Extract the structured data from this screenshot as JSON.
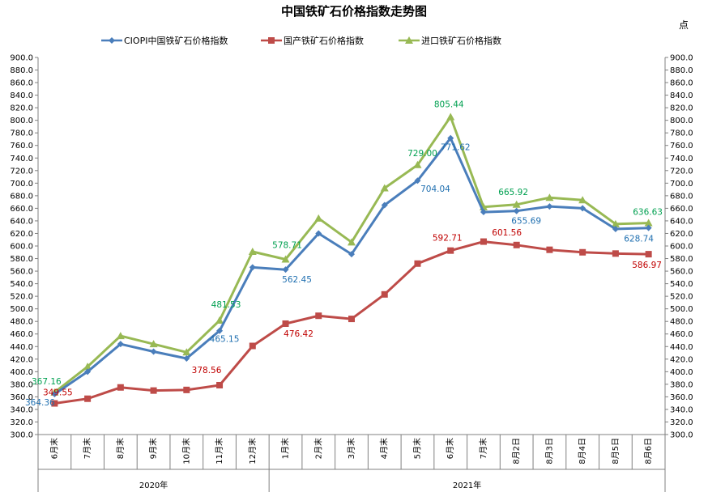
{
  "colors": {
    "ciopi": "#4a7ebb",
    "domestic": "#be4b48",
    "imported": "#98b954",
    "label_ciopi": "#1f6fb0",
    "label_domestic": "#c00000",
    "label_imported": "#00a050"
  },
  "chart_data": {
    "type": "line",
    "title": "中国铁矿石价格指数走势图",
    "unit": "点",
    "categories": [
      "6月末",
      "7月末",
      "8月末",
      "9月末",
      "10月末",
      "11月末",
      "12月末",
      "1月末",
      "2月末",
      "3月末",
      "4月末",
      "5月末",
      "6月末",
      "7月末",
      "8月2日",
      "8月3日",
      "8月4日",
      "8月5日",
      "8月6日"
    ],
    "groups": [
      {
        "label": "2020年",
        "start": 0,
        "end": 6
      },
      {
        "label": "2021年",
        "start": 7,
        "end": 18
      }
    ],
    "ylim": [
      300,
      900
    ],
    "ystep": 20,
    "grid": false,
    "legend_position": "top",
    "series": [
      {
        "name": "CIOPI中国铁矿石价格指数",
        "marker": "diamond",
        "color_key": "ciopi",
        "label_color_key": "label_ciopi",
        "values": [
          364.36,
          400,
          444,
          432,
          421,
          465.15,
          566,
          562.45,
          620,
          587,
          665,
          704.04,
          771.62,
          654,
          655.69,
          663,
          660,
          627,
          628.74
        ],
        "labels": [
          [
            "364.36",
            0
          ],
          [
            "465.15",
            5
          ],
          [
            "562.45",
            7
          ],
          [
            "704.04",
            11
          ],
          [
            "771.62",
            12
          ],
          [
            "655.69",
            14
          ],
          [
            "628.74",
            18
          ]
        ]
      },
      {
        "name": "国产铁矿石价格指数",
        "marker": "square",
        "color_key": "domestic",
        "label_color_key": "label_domestic",
        "values": [
          349.55,
          357,
          375,
          370,
          371,
          378.56,
          441,
          476.42,
          489,
          484,
          523,
          572,
          592.71,
          607,
          601.56,
          594,
          590,
          588,
          586.97
        ],
        "labels": [
          [
            "349.55",
            0
          ],
          [
            "378.56",
            5
          ],
          [
            "476.42",
            7
          ],
          [
            "592.71",
            12
          ],
          [
            "601.56",
            14
          ],
          [
            "586.97",
            18
          ]
        ]
      },
      {
        "name": "进口铁矿石价格指数",
        "marker": "triangle",
        "color_key": "imported",
        "label_color_key": "label_imported",
        "values": [
          367.16,
          408,
          457,
          444,
          431,
          481.53,
          591,
          578.71,
          644,
          606,
          692,
          729,
          805.44,
          662,
          665.92,
          677,
          673,
          635,
          636.63
        ],
        "labels": [
          [
            "367.16",
            0
          ],
          [
            "481.53",
            5
          ],
          [
            "578.71",
            7
          ],
          [
            "729.00",
            11
          ],
          [
            "805.44",
            12
          ],
          [
            "665.92",
            14
          ],
          [
            "636.63",
            18
          ]
        ]
      }
    ]
  }
}
